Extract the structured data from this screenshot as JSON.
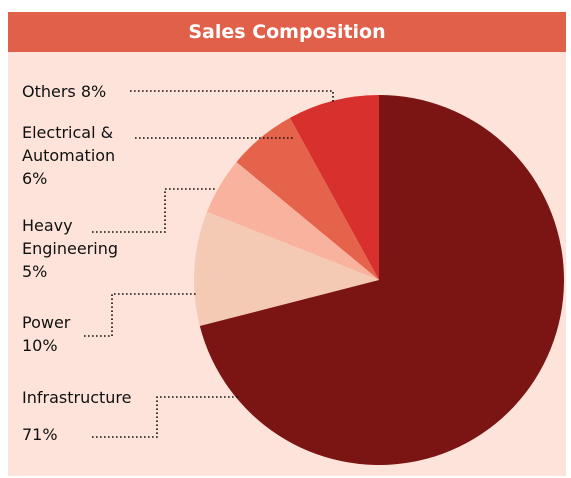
{
  "chart_data": {
    "type": "pie",
    "title": "Sales Composition",
    "categories": [
      "Infrastructure",
      "Power",
      "Heavy Engineering",
      "Electrical & Automation",
      "Others"
    ],
    "values": [
      71,
      10,
      5,
      6,
      8
    ],
    "value_labels": [
      "71%",
      "10%",
      "5%",
      "6%",
      "8%"
    ],
    "colors": [
      "#7a1513",
      "#f5cab5",
      "#f8b29e",
      "#e5634a",
      "#d8302c"
    ]
  }
}
